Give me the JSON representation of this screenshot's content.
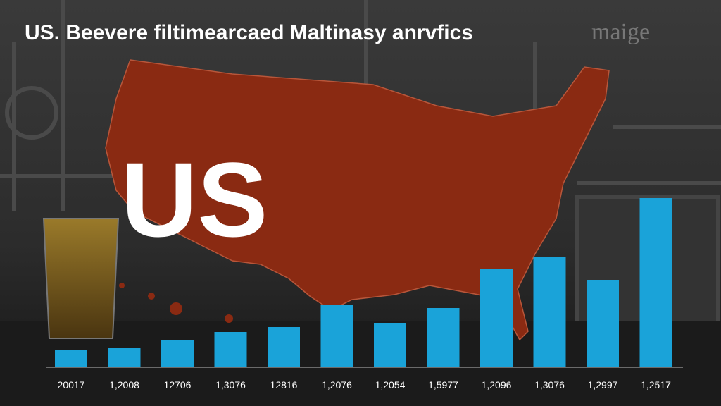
{
  "chart_data": {
    "type": "bar",
    "title": "US. Beevere filtimearcaed Maltinasy anrvfics",
    "watermark": "maige",
    "overlay_text": "US",
    "categories": [
      "20017",
      "1,2008",
      "12706",
      "1,3076",
      "12816",
      "1,2076",
      "1,2054",
      "1,5977",
      "1,2096",
      "1,3076",
      "1,2997",
      "1,2517"
    ],
    "values": [
      25,
      27,
      38,
      50,
      57,
      88,
      63,
      84,
      139,
      156,
      124,
      240
    ],
    "color": "#1aa3d9"
  }
}
